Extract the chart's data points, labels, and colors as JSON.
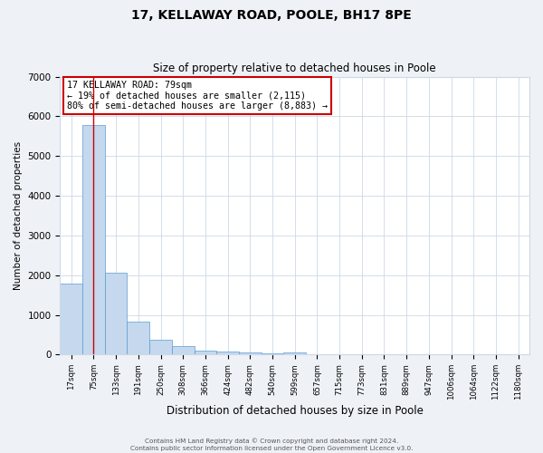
{
  "title": "17, KELLAWAY ROAD, POOLE, BH17 8PE",
  "subtitle": "Size of property relative to detached houses in Poole",
  "xlabel": "Distribution of detached houses by size in Poole",
  "ylabel": "Number of detached properties",
  "bin_labels": [
    "17sqm",
    "75sqm",
    "133sqm",
    "191sqm",
    "250sqm",
    "308sqm",
    "366sqm",
    "424sqm",
    "482sqm",
    "540sqm",
    "599sqm",
    "657sqm",
    "715sqm",
    "773sqm",
    "831sqm",
    "889sqm",
    "947sqm",
    "1006sqm",
    "1064sqm",
    "1122sqm",
    "1180sqm"
  ],
  "bar_heights": [
    1780,
    5780,
    2060,
    820,
    370,
    220,
    105,
    75,
    50,
    40,
    60,
    0,
    0,
    0,
    0,
    0,
    0,
    0,
    0,
    0,
    0
  ],
  "bar_color": "#c5d8ed",
  "bar_edge_color": "#5b9bd5",
  "vline_x": 1,
  "vline_color": "#cc0000",
  "annotation_title": "17 KELLAWAY ROAD: 79sqm",
  "annotation_line1": "← 19% of detached houses are smaller (2,115)",
  "annotation_line2": "80% of semi-detached houses are larger (8,883) →",
  "annotation_box_color": "#ffffff",
  "annotation_box_edge_color": "#cc0000",
  "ylim": [
    0,
    7000
  ],
  "yticks": [
    0,
    1000,
    2000,
    3000,
    4000,
    5000,
    6000,
    7000
  ],
  "footer1": "Contains HM Land Registry data © Crown copyright and database right 2024.",
  "footer2": "Contains public sector information licensed under the Open Government Licence v3.0.",
  "bg_color": "#eef2f7",
  "plot_bg_color": "#ffffff",
  "grid_color": "#ccd8e8"
}
